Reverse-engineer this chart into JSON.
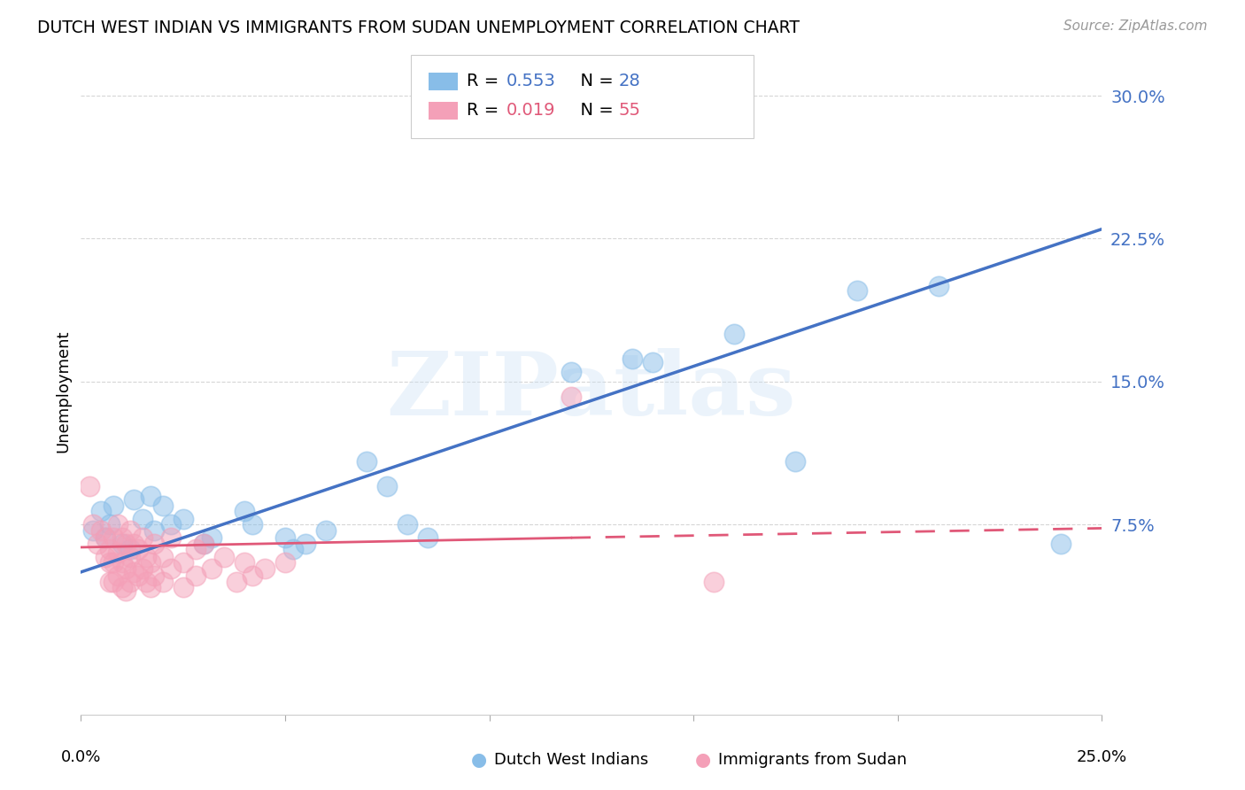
{
  "title": "DUTCH WEST INDIAN VS IMMIGRANTS FROM SUDAN UNEMPLOYMENT CORRELATION CHART",
  "source": "Source: ZipAtlas.com",
  "ylabel": "Unemployment",
  "yticks": [
    0.0,
    0.075,
    0.15,
    0.225,
    0.3
  ],
  "ytick_labels": [
    "",
    "7.5%",
    "15.0%",
    "22.5%",
    "30.0%"
  ],
  "xlim": [
    0.0,
    0.25
  ],
  "ylim": [
    -0.025,
    0.315
  ],
  "watermark": "ZIPatlas",
  "legend_label1": "Dutch West Indians",
  "legend_label2": "Immigrants from Sudan",
  "blue_color": "#88bde8",
  "pink_color": "#f4a0b8",
  "blue_line_color": "#4472c4",
  "pink_line_color": "#e05878",
  "blue_scatter": [
    [
      0.003,
      0.072
    ],
    [
      0.005,
      0.082
    ],
    [
      0.006,
      0.068
    ],
    [
      0.007,
      0.075
    ],
    [
      0.008,
      0.085
    ],
    [
      0.01,
      0.065
    ],
    [
      0.012,
      0.062
    ],
    [
      0.013,
      0.088
    ],
    [
      0.015,
      0.078
    ],
    [
      0.017,
      0.09
    ],
    [
      0.018,
      0.072
    ],
    [
      0.02,
      0.085
    ],
    [
      0.022,
      0.075
    ],
    [
      0.025,
      0.078
    ],
    [
      0.03,
      0.065
    ],
    [
      0.032,
      0.068
    ],
    [
      0.04,
      0.082
    ],
    [
      0.042,
      0.075
    ],
    [
      0.05,
      0.068
    ],
    [
      0.052,
      0.062
    ],
    [
      0.055,
      0.065
    ],
    [
      0.06,
      0.072
    ],
    [
      0.07,
      0.108
    ],
    [
      0.075,
      0.095
    ],
    [
      0.08,
      0.075
    ],
    [
      0.085,
      0.068
    ],
    [
      0.12,
      0.155
    ],
    [
      0.135,
      0.162
    ],
    [
      0.14,
      0.16
    ],
    [
      0.16,
      0.175
    ],
    [
      0.175,
      0.108
    ],
    [
      0.19,
      0.198
    ],
    [
      0.21,
      0.2
    ],
    [
      0.24,
      0.065
    ]
  ],
  "pink_scatter": [
    [
      0.002,
      0.095
    ],
    [
      0.003,
      0.075
    ],
    [
      0.004,
      0.065
    ],
    [
      0.005,
      0.072
    ],
    [
      0.006,
      0.068
    ],
    [
      0.006,
      0.058
    ],
    [
      0.007,
      0.062
    ],
    [
      0.007,
      0.055
    ],
    [
      0.007,
      0.045
    ],
    [
      0.008,
      0.068
    ],
    [
      0.008,
      0.055
    ],
    [
      0.008,
      0.045
    ],
    [
      0.009,
      0.075
    ],
    [
      0.009,
      0.06
    ],
    [
      0.009,
      0.048
    ],
    [
      0.01,
      0.068
    ],
    [
      0.01,
      0.055
    ],
    [
      0.01,
      0.042
    ],
    [
      0.011,
      0.065
    ],
    [
      0.011,
      0.052
    ],
    [
      0.011,
      0.04
    ],
    [
      0.012,
      0.072
    ],
    [
      0.012,
      0.058
    ],
    [
      0.012,
      0.045
    ],
    [
      0.013,
      0.065
    ],
    [
      0.013,
      0.05
    ],
    [
      0.014,
      0.062
    ],
    [
      0.014,
      0.048
    ],
    [
      0.015,
      0.068
    ],
    [
      0.015,
      0.052
    ],
    [
      0.016,
      0.058
    ],
    [
      0.016,
      0.045
    ],
    [
      0.017,
      0.055
    ],
    [
      0.017,
      0.042
    ],
    [
      0.018,
      0.065
    ],
    [
      0.018,
      0.048
    ],
    [
      0.02,
      0.058
    ],
    [
      0.02,
      0.045
    ],
    [
      0.022,
      0.068
    ],
    [
      0.022,
      0.052
    ],
    [
      0.025,
      0.055
    ],
    [
      0.025,
      0.042
    ],
    [
      0.028,
      0.062
    ],
    [
      0.028,
      0.048
    ],
    [
      0.03,
      0.065
    ],
    [
      0.032,
      0.052
    ],
    [
      0.035,
      0.058
    ],
    [
      0.038,
      0.045
    ],
    [
      0.04,
      0.055
    ],
    [
      0.042,
      0.048
    ],
    [
      0.045,
      0.052
    ],
    [
      0.05,
      0.055
    ],
    [
      0.12,
      0.142
    ],
    [
      0.155,
      0.045
    ]
  ],
  "background_color": "#ffffff",
  "grid_color": "#cccccc"
}
